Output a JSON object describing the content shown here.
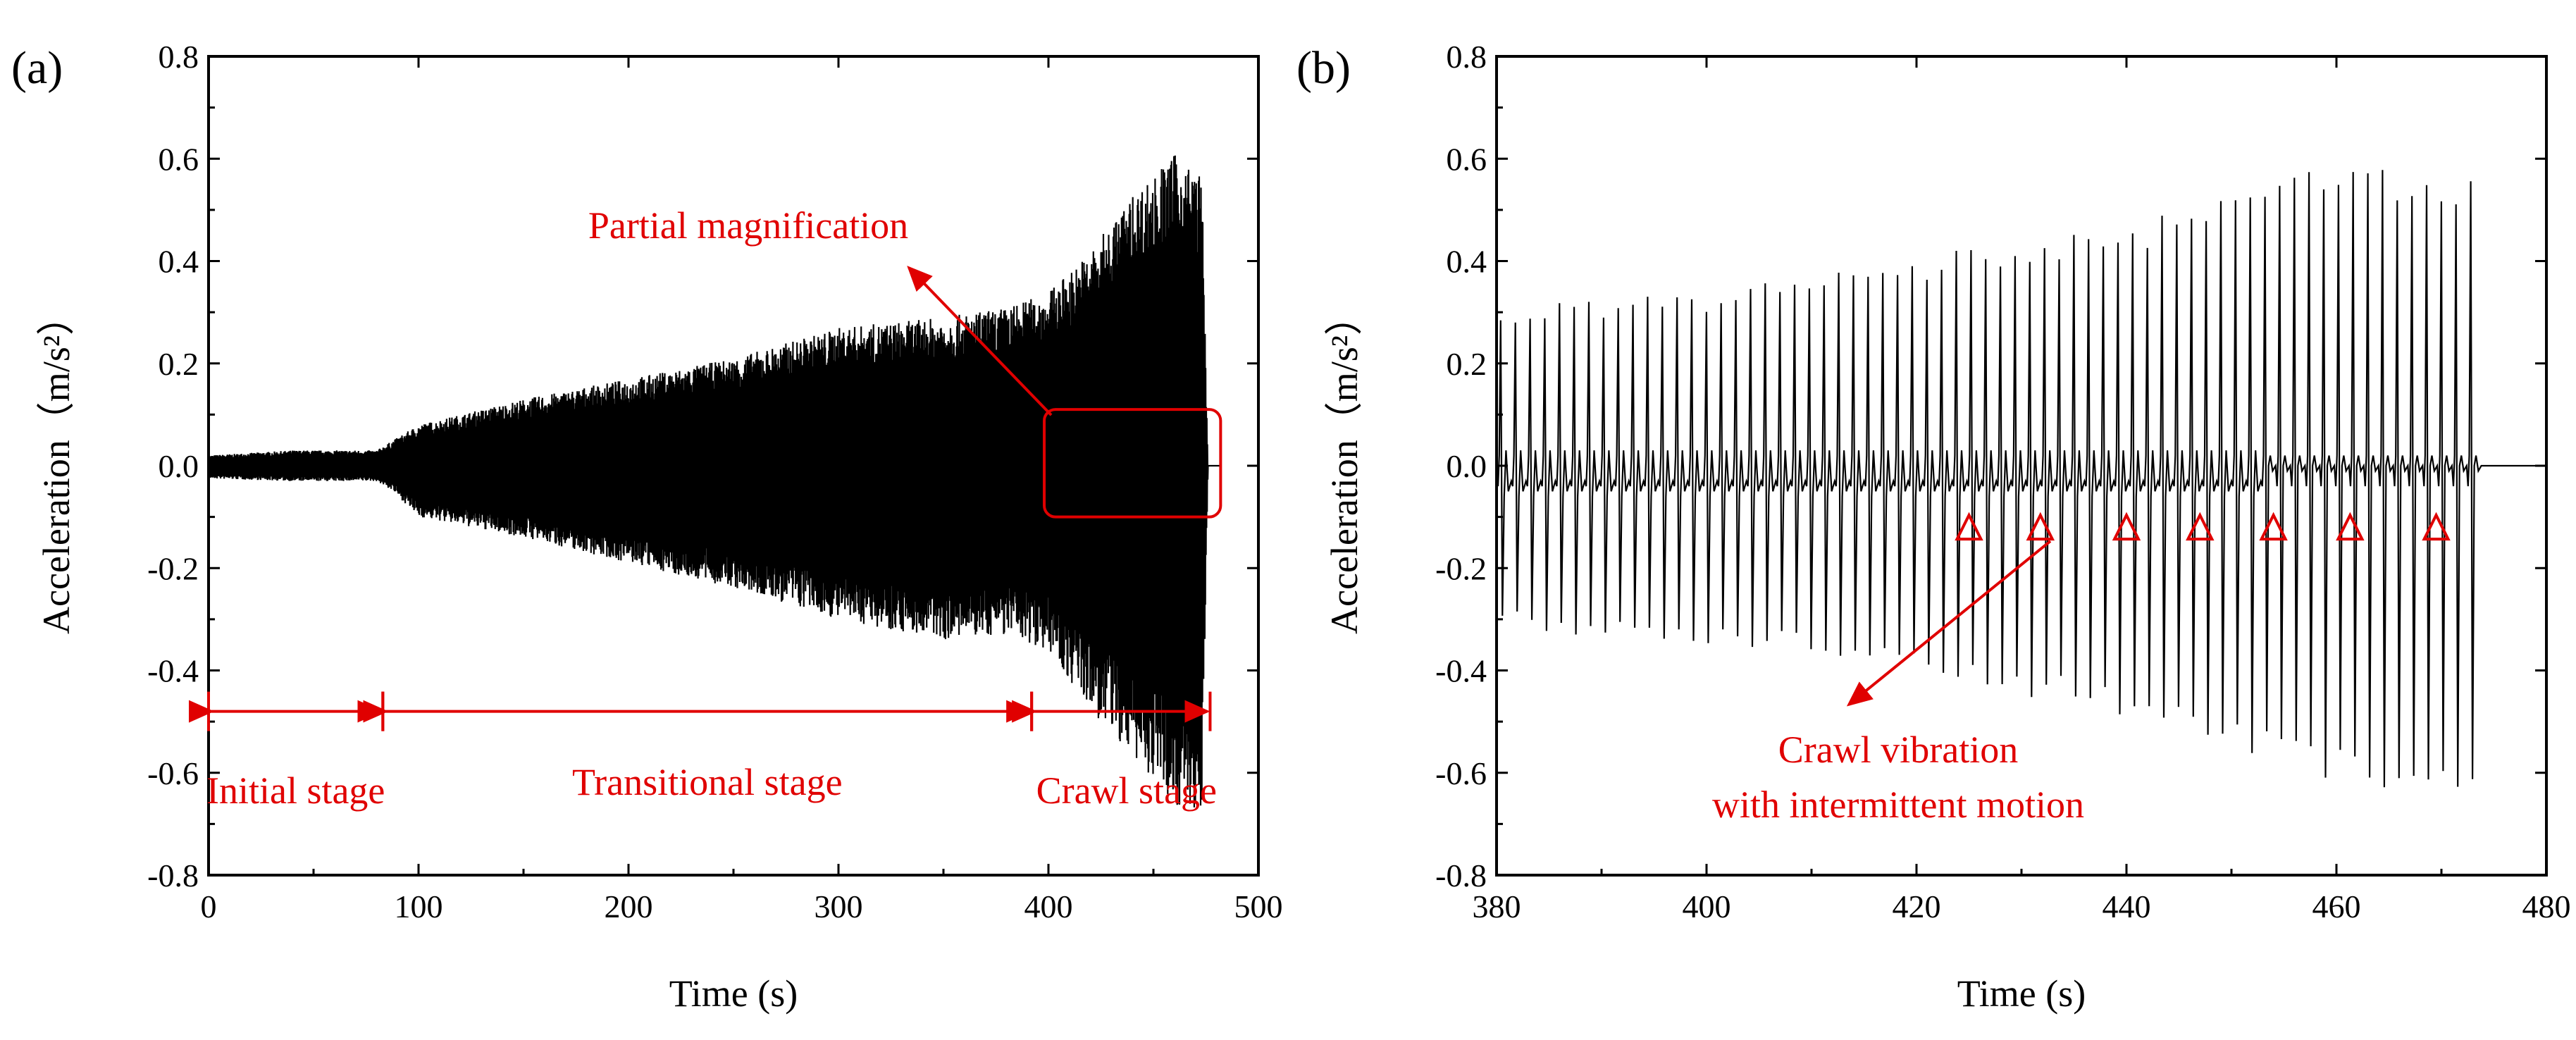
{
  "chart_data": [
    {
      "type": "line",
      "panel_label": "(a)",
      "xlabel": "Time (s)",
      "ylabel": "Acceleration（m/s²）",
      "xlim": [
        0,
        500
      ],
      "ylim": [
        -0.8,
        0.8
      ],
      "x_ticks": [
        "0",
        "100",
        "200",
        "300",
        "400",
        "500"
      ],
      "y_ticks": [
        "0.8",
        "0.6",
        "0.4",
        "0.2",
        "0.0",
        "-0.2",
        "-0.4",
        "-0.6",
        "-0.8"
      ],
      "series": [
        {
          "name": "Acceleration",
          "envelope": [
            {
              "t": 0,
              "max": 0.02,
              "min": -0.025
            },
            {
              "t": 40,
              "max": 0.03,
              "min": -0.03
            },
            {
              "t": 80,
              "max": 0.03,
              "min": -0.03
            },
            {
              "t": 88,
              "max": 0.05,
              "min": -0.05
            },
            {
              "t": 100,
              "max": 0.08,
              "min": -0.1
            },
            {
              "t": 150,
              "max": 0.13,
              "min": -0.14
            },
            {
              "t": 200,
              "max": 0.17,
              "min": -0.19
            },
            {
              "t": 250,
              "max": 0.21,
              "min": -0.24
            },
            {
              "t": 300,
              "max": 0.27,
              "min": -0.3
            },
            {
              "t": 350,
              "max": 0.29,
              "min": -0.34
            },
            {
              "t": 380,
              "max": 0.31,
              "min": -0.33
            },
            {
              "t": 400,
              "max": 0.34,
              "min": -0.36
            },
            {
              "t": 420,
              "max": 0.42,
              "min": -0.48
            },
            {
              "t": 440,
              "max": 0.53,
              "min": -0.57
            },
            {
              "t": 460,
              "max": 0.61,
              "min": -0.66
            },
            {
              "t": 473,
              "max": 0.57,
              "min": -0.69
            },
            {
              "t": 476,
              "max": 0.0,
              "min": 0.0
            },
            {
              "t": 480,
              "max": 0.0,
              "min": 0.0
            }
          ]
        }
      ],
      "annotations": {
        "stages": [
          {
            "label": "Initial stage",
            "from": 0,
            "to": 83
          },
          {
            "label": "Transitional stage",
            "from": 83,
            "to": 392
          },
          {
            "label": "Crawl stage",
            "from": 392,
            "to": 477
          }
        ],
        "stage_arrow_y": -0.48,
        "magnify_box": {
          "x_from": 398,
          "x_to": 482,
          "y_from": -0.1,
          "y_to": 0.11
        },
        "magnify_label": "Partial magnification"
      }
    },
    {
      "type": "line",
      "panel_label": "(b)",
      "xlabel": "Time (s)",
      "ylabel": "Acceleration（m/s²）",
      "xlim": [
        380,
        480
      ],
      "ylim": [
        -0.8,
        0.8
      ],
      "x_ticks": [
        "380",
        "400",
        "420",
        "440",
        "460",
        "480"
      ],
      "y_ticks": [
        "0.8",
        "0.6",
        "0.4",
        "0.2",
        "0.0",
        "-0.2",
        "-0.4",
        "-0.6",
        "-0.8"
      ],
      "series": [
        {
          "name": "Acceleration",
          "period": 1.4,
          "peaks": [
            {
              "t": 380,
              "max": 0.31,
              "min": -0.32
            },
            {
              "t": 400,
              "max": 0.34,
              "min": -0.35
            },
            {
              "t": 420,
              "max": 0.41,
              "min": -0.4
            },
            {
              "t": 440,
              "max": 0.47,
              "min": -0.5
            },
            {
              "t": 460,
              "max": 0.6,
              "min": -0.62
            },
            {
              "t": 473,
              "max": 0.57,
              "min": -0.69
            }
          ],
          "stop_time": 474
        }
      ],
      "annotations": {
        "markers": [
          425,
          431.8,
          440,
          447,
          454,
          461.3,
          469.5
        ],
        "marker_y": -0.12,
        "label_line1": "Crawl vibration",
        "label_line2": "with intermittent motion"
      }
    }
  ]
}
